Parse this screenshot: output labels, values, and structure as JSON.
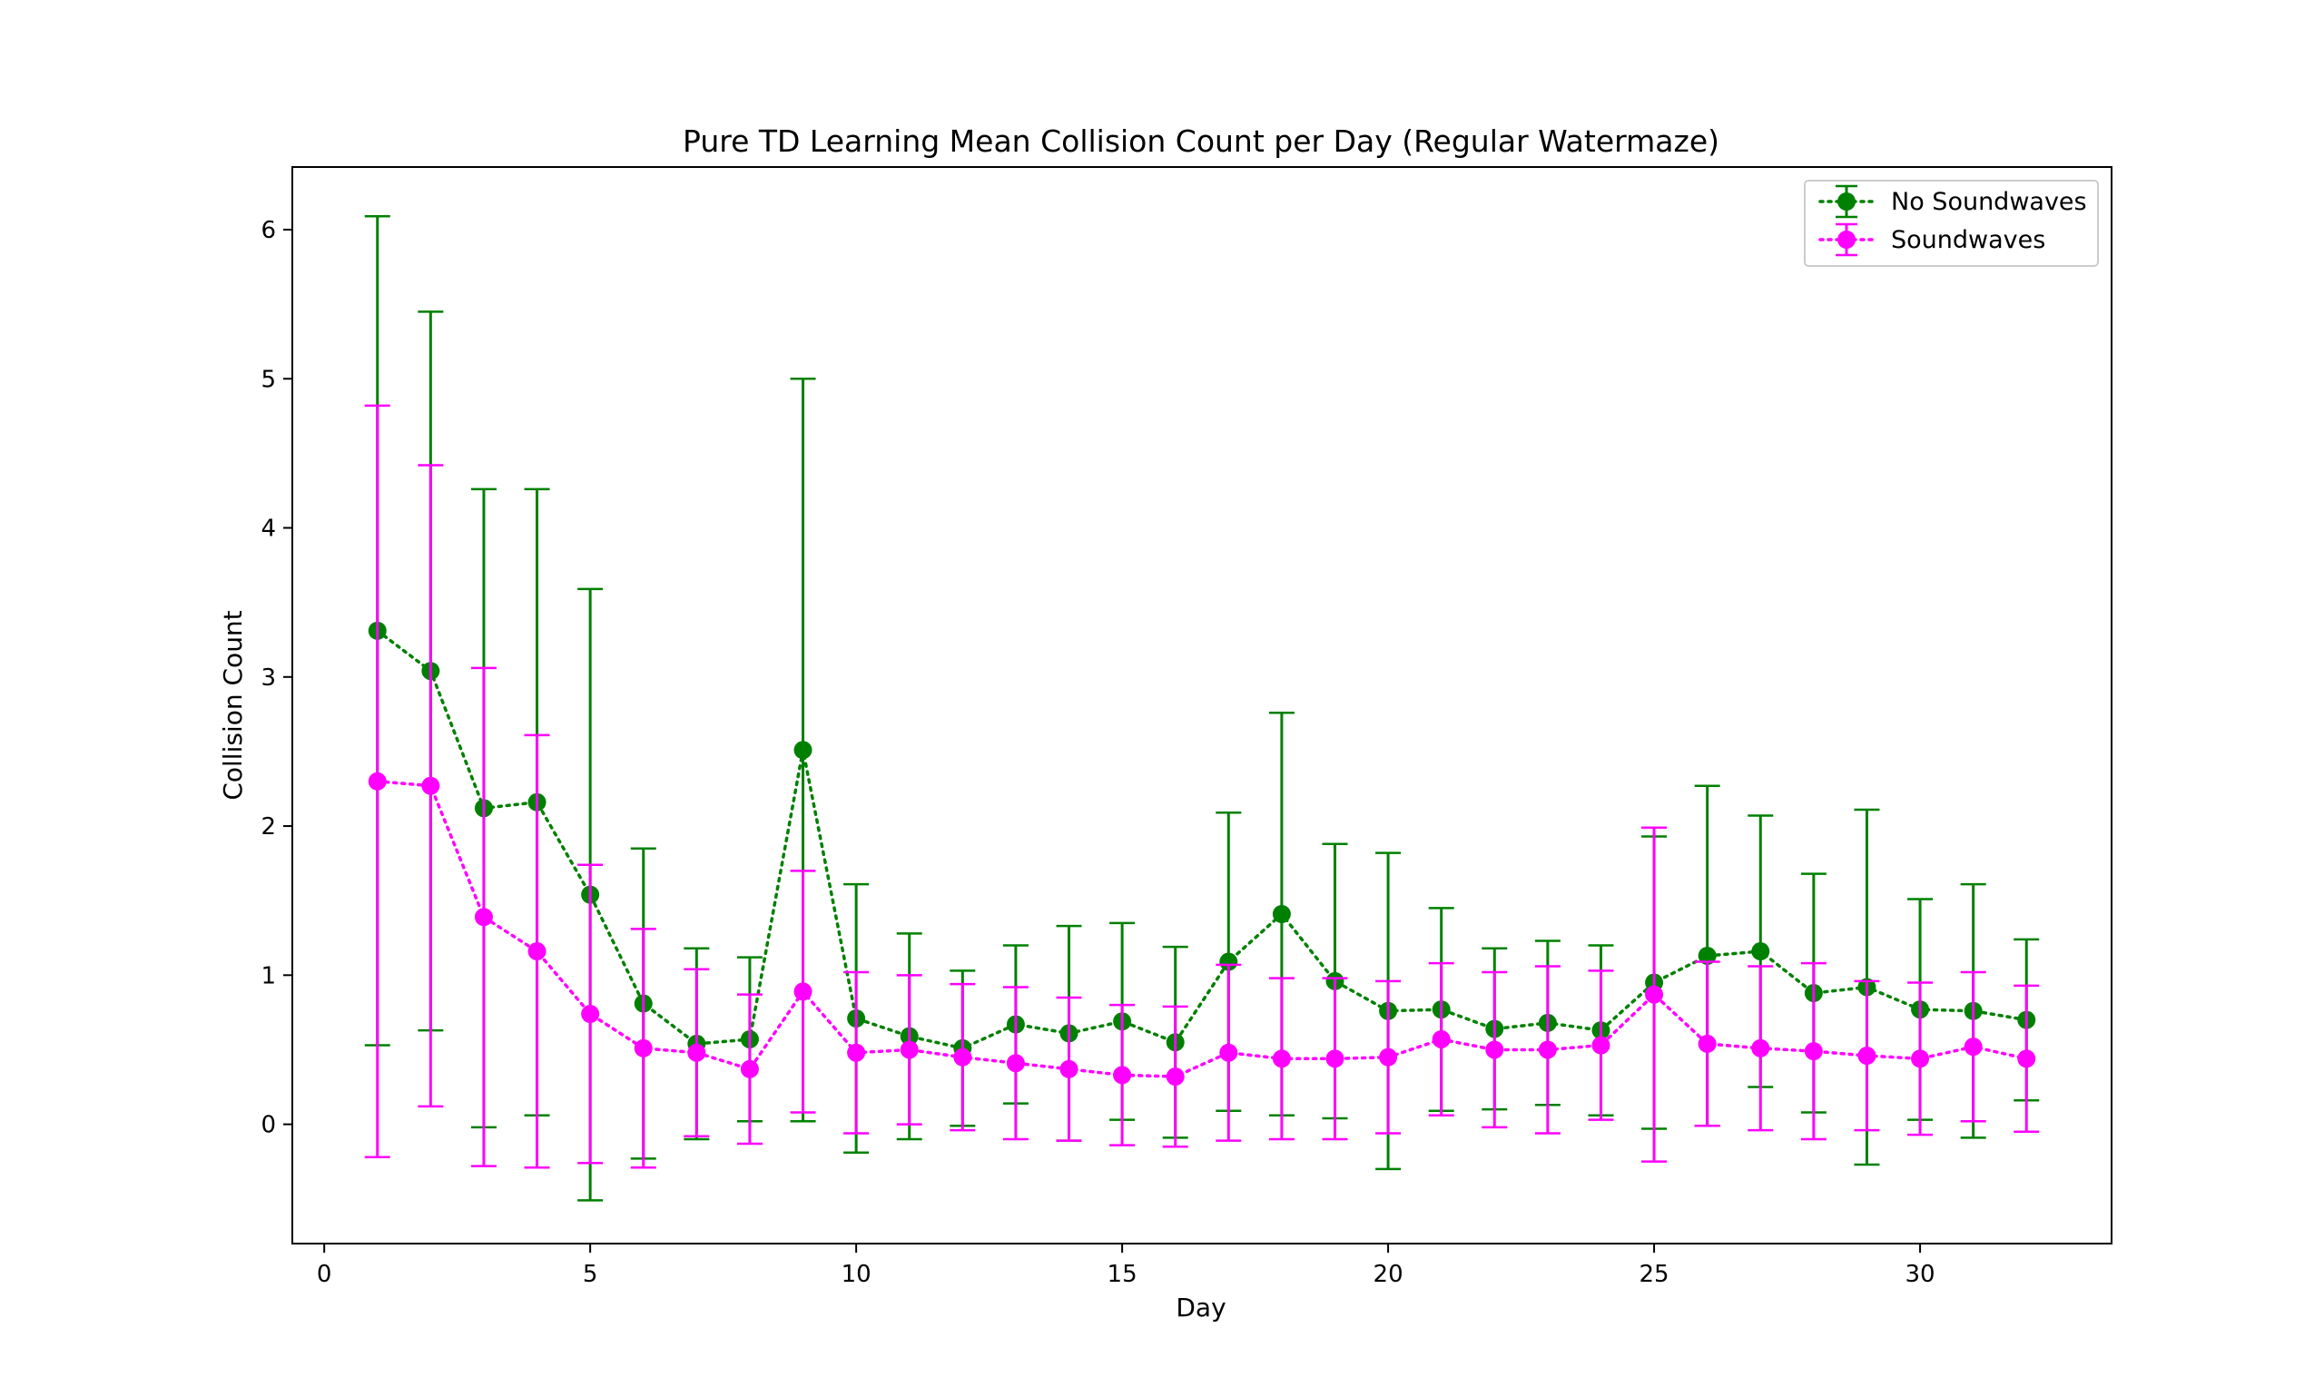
{
  "chart_data": {
    "type": "line",
    "title": "Pure TD Learning Mean Collision Count per Day (Regular Watermaze)",
    "xlabel": "Day",
    "ylabel": "Collision Count",
    "xlim": [
      -0.6,
      33.6
    ],
    "ylim": [
      -0.8,
      6.42
    ],
    "xticks": [
      0,
      5,
      10,
      15,
      20,
      25,
      30
    ],
    "yticks": [
      0,
      1,
      2,
      3,
      4,
      5,
      6
    ],
    "grid": false,
    "legend_position": "top-right",
    "x": [
      1,
      2,
      3,
      4,
      5,
      6,
      7,
      8,
      9,
      10,
      11,
      12,
      13,
      14,
      15,
      16,
      17,
      18,
      19,
      20,
      21,
      22,
      23,
      24,
      25,
      26,
      27,
      28,
      29,
      30,
      31,
      32
    ],
    "series": [
      {
        "name": "No Soundwaves",
        "color": "#008000",
        "values": [
          3.31,
          3.04,
          2.12,
          2.16,
          1.54,
          0.81,
          0.54,
          0.57,
          2.51,
          0.71,
          0.59,
          0.51,
          0.67,
          0.61,
          0.69,
          0.55,
          1.09,
          1.41,
          0.96,
          0.76,
          0.77,
          0.64,
          0.68,
          0.63,
          0.95,
          1.13,
          1.16,
          0.88,
          0.92,
          0.77,
          0.76,
          0.7
        ],
        "errors": [
          2.78,
          2.41,
          2.14,
          2.1,
          2.05,
          1.04,
          0.64,
          0.55,
          2.49,
          0.9,
          0.69,
          0.52,
          0.53,
          0.72,
          0.66,
          0.64,
          1.0,
          1.35,
          0.92,
          1.06,
          0.68,
          0.54,
          0.55,
          0.57,
          0.98,
          1.14,
          0.91,
          0.8,
          1.19,
          0.74,
          0.85,
          0.54
        ]
      },
      {
        "name": "Soundwaves",
        "color": "#ff00ff",
        "values": [
          2.3,
          2.27,
          1.39,
          1.16,
          0.74,
          0.51,
          0.48,
          0.37,
          0.89,
          0.48,
          0.5,
          0.45,
          0.41,
          0.37,
          0.33,
          0.32,
          0.48,
          0.44,
          0.44,
          0.45,
          0.57,
          0.5,
          0.5,
          0.53,
          0.87,
          0.54,
          0.51,
          0.49,
          0.46,
          0.44,
          0.52,
          0.44
        ],
        "errors": [
          2.52,
          2.15,
          1.67,
          1.45,
          1.0,
          0.8,
          0.56,
          0.5,
          0.81,
          0.54,
          0.5,
          0.49,
          0.51,
          0.48,
          0.47,
          0.47,
          0.59,
          0.54,
          0.54,
          0.51,
          0.51,
          0.52,
          0.56,
          0.5,
          1.12,
          0.55,
          0.55,
          0.59,
          0.5,
          0.51,
          0.5,
          0.49
        ]
      }
    ]
  }
}
